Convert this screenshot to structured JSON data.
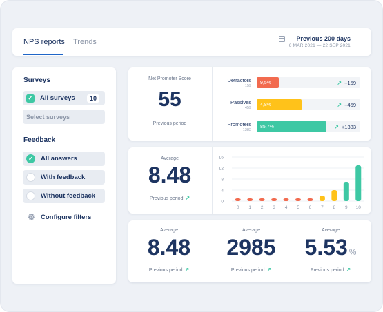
{
  "header": {
    "tabs": [
      {
        "label": "NPS reports",
        "active": true
      },
      {
        "label": "Trends",
        "active": false
      }
    ],
    "period_title": "Previous 200 days",
    "period_range": "6 MAR 2021 — 22 SEP 2021",
    "calendar_icon": "calendar-icon"
  },
  "sidebar": {
    "surveys_title": "Surveys",
    "all_surveys_label": "All surveys",
    "all_surveys_count": "10",
    "select_placeholder": "Select surveys",
    "feedback_title": "Feedback",
    "feedback_options": [
      {
        "label": "All answers",
        "selected": true
      },
      {
        "label": "With feedback",
        "selected": false
      },
      {
        "label": "Without feedback",
        "selected": false
      }
    ],
    "configure_label": "Configure filters",
    "configure_icon": "gear-icon"
  },
  "nps": {
    "title": "Net Promoter Score",
    "value": "55",
    "prev_label": "Previous period",
    "rows": [
      {
        "name": "Detractors",
        "count": "159",
        "pct": "9,5%",
        "fraction": 0.21,
        "color": "#f26b4f",
        "delta": "+159"
      },
      {
        "name": "Passives",
        "count": "459",
        "pct": "4,8%",
        "fraction": 0.43,
        "color": "#ffc21a",
        "delta": "+459"
      },
      {
        "name": "Promoters",
        "count": "1383",
        "pct": "85,7%",
        "fraction": 0.67,
        "color": "#3ec8a4",
        "delta": "+1383"
      }
    ]
  },
  "average": {
    "label": "Average",
    "value": "8.48",
    "prev_label": "Previous period"
  },
  "chart_data": {
    "type": "bar",
    "categories": [
      "0",
      "1",
      "2",
      "3",
      "4",
      "5",
      "6",
      "7",
      "8",
      "9",
      "10"
    ],
    "values": [
      1,
      1,
      1,
      1,
      1,
      1,
      1,
      2,
      4,
      7,
      13
    ],
    "colors": [
      "#f26b4f",
      "#f26b4f",
      "#f26b4f",
      "#f26b4f",
      "#f26b4f",
      "#f26b4f",
      "#f26b4f",
      "#ffc21a",
      "#ffc21a",
      "#3ec8a4",
      "#3ec8a4"
    ],
    "yticks": [
      "16",
      "12",
      "8",
      "4",
      "0"
    ],
    "ylim": [
      0,
      16
    ],
    "title": "",
    "xlabel": "",
    "ylabel": ""
  },
  "metrics": [
    {
      "label": "Average",
      "value": "8.48",
      "unit": "",
      "prev_label": "Previous period"
    },
    {
      "label": "Average",
      "value": "2985",
      "unit": "",
      "prev_label": "Previous period"
    },
    {
      "label": "Average",
      "value": "5.53",
      "unit": "%",
      "prev_label": "Previous period"
    }
  ],
  "colors": {
    "accent": "#1f66c8",
    "text": "#1d3461",
    "up": "#3ec8a4"
  }
}
